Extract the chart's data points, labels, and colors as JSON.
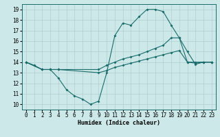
{
  "xlabel": "Humidex (Indice chaleur)",
  "bg_color": "#cce8e8",
  "line_color": "#1a6b6b",
  "grid_color": "#aed0d0",
  "xlim": [
    -0.5,
    23.5
  ],
  "ylim": [
    9.5,
    19.5
  ],
  "xticks": [
    0,
    1,
    2,
    3,
    4,
    5,
    6,
    7,
    8,
    9,
    10,
    11,
    12,
    13,
    14,
    15,
    16,
    17,
    18,
    19,
    20,
    21,
    22,
    23
  ],
  "yticks": [
    10,
    11,
    12,
    13,
    14,
    15,
    16,
    17,
    18,
    19
  ],
  "line1_x": [
    0,
    1,
    2,
    3,
    4,
    5,
    6,
    7,
    8,
    9,
    10,
    11,
    12,
    13,
    14,
    15,
    16,
    17,
    18,
    19,
    20,
    21,
    22,
    23
  ],
  "line1_y": [
    14.0,
    13.7,
    13.3,
    13.3,
    12.5,
    11.4,
    10.8,
    10.5,
    10.0,
    10.3,
    13.0,
    16.5,
    17.7,
    17.5,
    18.3,
    19.0,
    19.0,
    18.8,
    17.5,
    16.3,
    15.0,
    13.8,
    14.0,
    14.0
  ],
  "line2_x": [
    0,
    2,
    3,
    4,
    9,
    10,
    11,
    12,
    13,
    14,
    15,
    16,
    17,
    18,
    19,
    20,
    21,
    22,
    23
  ],
  "line2_y": [
    14.0,
    13.3,
    13.3,
    13.3,
    13.3,
    13.7,
    14.0,
    14.3,
    14.5,
    14.7,
    15.0,
    15.3,
    15.6,
    16.3,
    16.3,
    14.0,
    14.0,
    14.0,
    14.0
  ],
  "line3_x": [
    0,
    2,
    3,
    4,
    9,
    10,
    11,
    12,
    13,
    14,
    15,
    16,
    17,
    18,
    19,
    20,
    21,
    22,
    23
  ],
  "line3_y": [
    14.0,
    13.3,
    13.3,
    13.3,
    13.0,
    13.2,
    13.5,
    13.7,
    13.9,
    14.1,
    14.3,
    14.5,
    14.7,
    14.9,
    15.1,
    14.0,
    13.9,
    14.0,
    14.0
  ],
  "marker_size": 2.0,
  "linewidth": 0.8
}
